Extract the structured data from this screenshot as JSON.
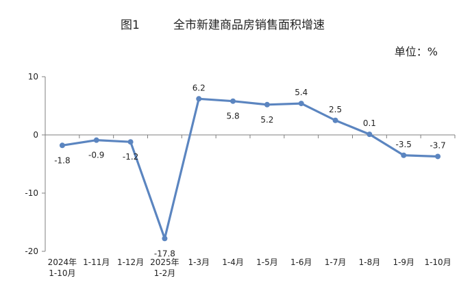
{
  "figure_label": "图1",
  "title": "全市新建商品房销售面积增速",
  "unit": "单位：%",
  "chart_data": {
    "type": "line",
    "title": "全市新建商品房销售面积增速",
    "xlabel": "",
    "ylabel": "",
    "ylim": [
      -20,
      10
    ],
    "yticks": [
      10,
      0,
      -10,
      -20
    ],
    "grid": false,
    "legend": "none",
    "categories": [
      "2024年 1-10月",
      "1-11月",
      "1-12月",
      "2025年 1-2月",
      "1-3月",
      "1-4月",
      "1-5月",
      "1-6月",
      "1-7月",
      "1-8月",
      "1-9月",
      "1-10月"
    ],
    "category_lines": [
      [
        "2024年",
        "1-10月"
      ],
      [
        "1-11月"
      ],
      [
        "1-12月"
      ],
      [
        "2025年",
        "1-2月"
      ],
      [
        "1-3月"
      ],
      [
        "1-4月"
      ],
      [
        "1-5月"
      ],
      [
        "1-6月"
      ],
      [
        "1-7月"
      ],
      [
        "1-8月"
      ],
      [
        "1-9月"
      ],
      [
        "1-10月"
      ]
    ],
    "series": [
      {
        "values": [
          -1.8,
          -0.9,
          -1.2,
          -17.8,
          6.2,
          5.8,
          5.2,
          5.4,
          2.5,
          0.1,
          -3.5,
          -3.7
        ],
        "labels": [
          "-1.8",
          "-0.9",
          "-1.2",
          "-17.8",
          "6.2",
          "5.8",
          "5.2",
          "5.4",
          "2.5",
          "0.1",
          "-3.5",
          "-3.7"
        ],
        "label_side": [
          "below",
          "below",
          "below",
          "below",
          "above",
          "below",
          "below",
          "above",
          "above",
          "above",
          "above",
          "above"
        ],
        "color": "#5b85c0"
      }
    ]
  }
}
